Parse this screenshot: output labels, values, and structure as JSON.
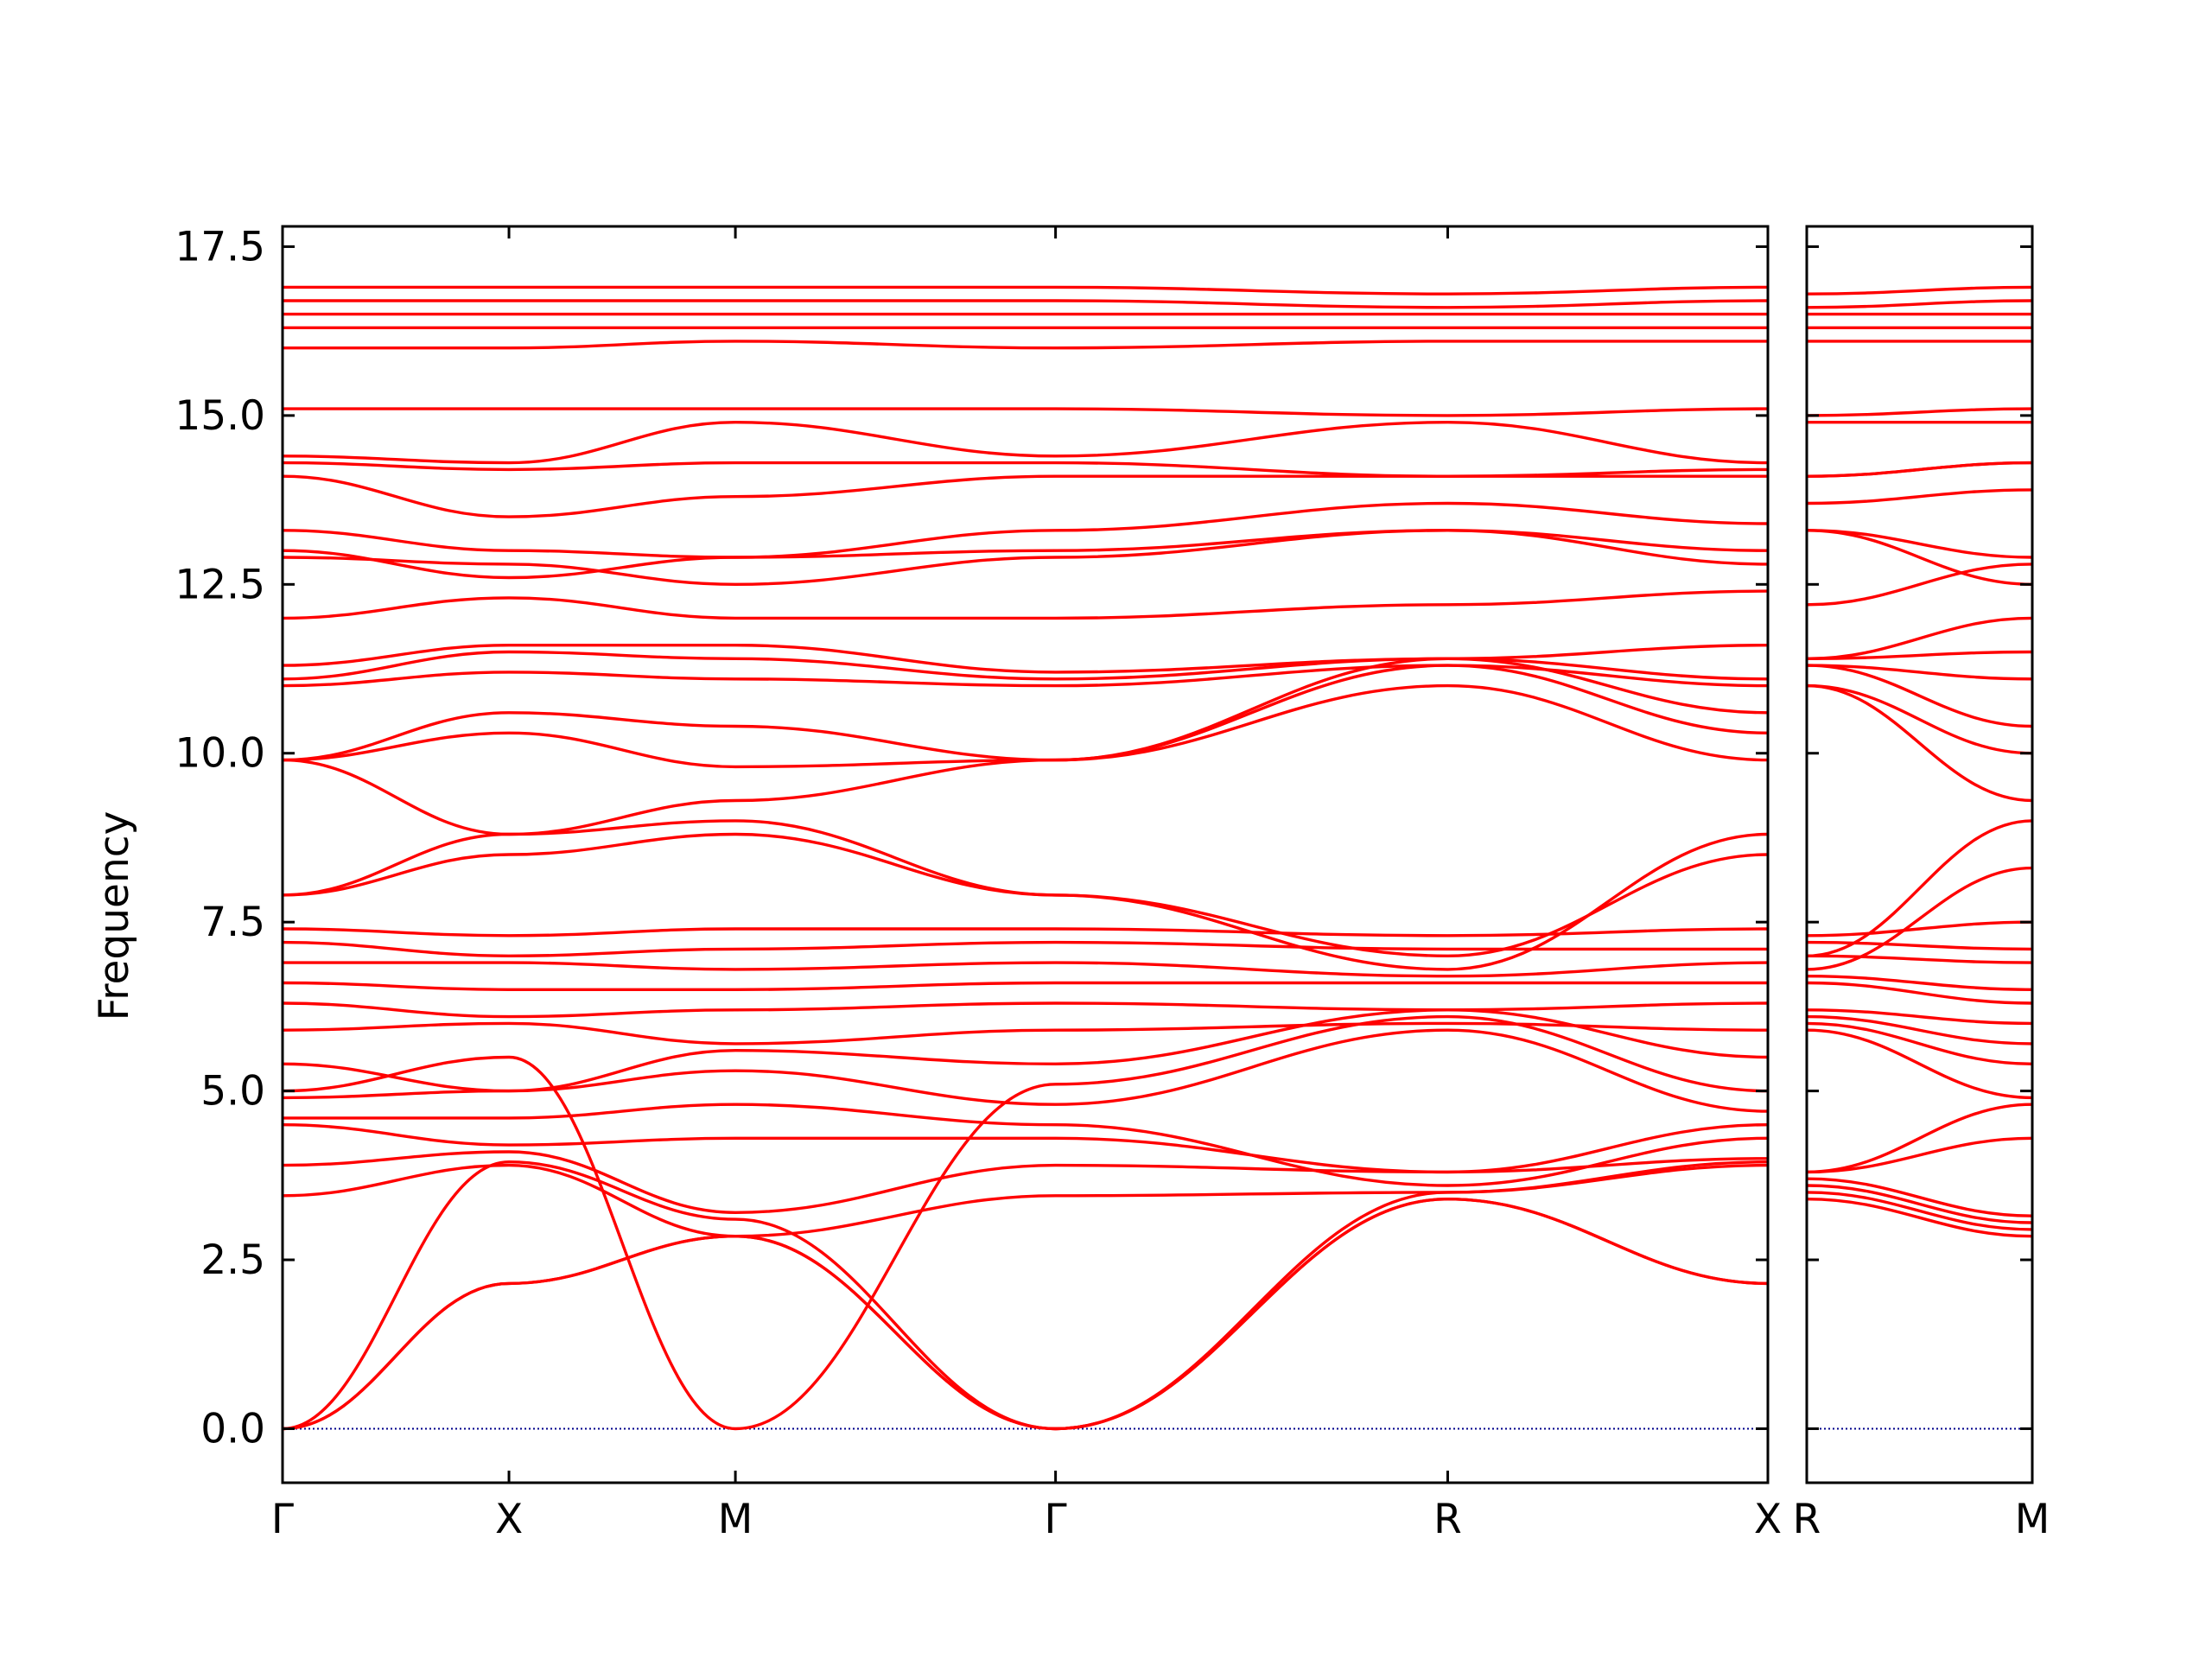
{
  "chart_data": {
    "type": "line",
    "ylabel": "Frequency",
    "ylim": [
      -0.8,
      17.8
    ],
    "yticks": [
      "0.0",
      "2.5",
      "5.0",
      "7.5",
      "10.0",
      "12.5",
      "15.0",
      "17.5"
    ],
    "line_color": "#ff0000",
    "zero_line_color": "#00008b",
    "panels": [
      {
        "name": "main",
        "kpoints": [
          "Γ",
          "X",
          "M",
          "Γ",
          "R",
          "X"
        ],
        "segment_lengths": [
          1,
          1,
          1.414,
          1.732,
          1.414
        ],
        "bands": [
          [
            0.0,
            3.95,
            3.1,
            0.0,
            3.5,
            3.95
          ],
          [
            0.0,
            2.15,
            2.85,
            0.0,
            3.4,
            2.15
          ],
          [
            0.0,
            2.15,
            2.85,
            0.0,
            3.4,
            2.15
          ],
          [
            3.45,
            3.9,
            2.85,
            3.45,
            3.5,
            3.9
          ],
          [
            3.9,
            4.1,
            3.2,
            3.9,
            3.8,
            4.0
          ],
          [
            4.5,
            4.2,
            4.3,
            4.3,
            3.8,
            4.5
          ],
          [
            4.6,
            4.6,
            4.8,
            4.5,
            3.6,
            4.3
          ],
          [
            4.9,
            5.0,
            5.3,
            4.8,
            5.9,
            4.7
          ],
          [
            5.0,
            5.5,
            0.0,
            5.1,
            6.1,
            5.0
          ],
          [
            5.4,
            5.0,
            5.6,
            5.4,
            6.2,
            5.5
          ],
          [
            5.9,
            6.0,
            5.7,
            5.9,
            6.0,
            5.9
          ],
          [
            6.3,
            6.1,
            6.2,
            6.3,
            6.2,
            6.3
          ],
          [
            6.6,
            6.5,
            6.5,
            6.6,
            6.6,
            6.6
          ],
          [
            6.9,
            6.9,
            6.8,
            6.9,
            6.7,
            6.9
          ],
          [
            7.2,
            7.0,
            7.1,
            7.2,
            7.1,
            7.1
          ],
          [
            7.4,
            7.3,
            7.4,
            7.4,
            7.3,
            7.4
          ],
          [
            7.9,
            8.5,
            8.8,
            7.9,
            7.0,
            8.5
          ],
          [
            7.9,
            8.8,
            9.0,
            7.9,
            6.8,
            8.8
          ],
          [
            9.9,
            8.8,
            9.3,
            9.9,
            11.0,
            9.9
          ],
          [
            9.9,
            10.3,
            9.8,
            9.9,
            11.3,
            10.3
          ],
          [
            9.9,
            10.6,
            10.4,
            9.9,
            11.4,
            10.6
          ],
          [
            11.0,
            11.2,
            11.1,
            11.0,
            11.3,
            11.0
          ],
          [
            11.1,
            11.5,
            11.4,
            11.1,
            11.4,
            11.1
          ],
          [
            11.3,
            11.6,
            11.6,
            11.2,
            11.4,
            11.6
          ],
          [
            12.0,
            12.3,
            12.0,
            12.0,
            12.2,
            12.4
          ],
          [
            12.9,
            12.8,
            12.5,
            12.9,
            13.3,
            12.8
          ],
          [
            13.0,
            12.6,
            12.9,
            13.0,
            13.3,
            13.0
          ],
          [
            13.3,
            13.0,
            12.9,
            13.3,
            13.7,
            13.4
          ],
          [
            14.1,
            13.5,
            13.8,
            14.1,
            14.1,
            14.1
          ],
          [
            14.3,
            14.2,
            14.3,
            14.3,
            14.1,
            14.2
          ],
          [
            14.4,
            14.3,
            14.9,
            14.4,
            14.9,
            14.3
          ],
          [
            15.1,
            15.1,
            15.1,
            15.1,
            15.0,
            15.1
          ],
          [
            16.0,
            16.0,
            16.1,
            16.0,
            16.1,
            16.1
          ],
          [
            16.3,
            16.3,
            16.3,
            16.3,
            16.3,
            16.3
          ],
          [
            16.5,
            16.5,
            16.5,
            16.5,
            16.5,
            16.5
          ],
          [
            16.7,
            16.7,
            16.7,
            16.7,
            16.6,
            16.7
          ],
          [
            16.9,
            16.9,
            16.9,
            16.9,
            16.8,
            16.9
          ]
        ]
      },
      {
        "name": "R-M",
        "kpoints": [
          "R",
          "M"
        ],
        "segment_lengths": [
          1
        ],
        "bands": [
          [
            3.4,
            2.85
          ],
          [
            3.5,
            2.95
          ],
          [
            3.6,
            3.05
          ],
          [
            3.7,
            3.15
          ],
          [
            3.8,
            4.3
          ],
          [
            3.8,
            4.8
          ],
          [
            5.9,
            4.9
          ],
          [
            6.0,
            5.4
          ],
          [
            6.1,
            5.7
          ],
          [
            6.2,
            6.0
          ],
          [
            6.6,
            6.3
          ],
          [
            6.7,
            6.5
          ],
          [
            7.0,
            6.9
          ],
          [
            7.2,
            7.1
          ],
          [
            7.3,
            7.5
          ],
          [
            6.8,
            8.3
          ],
          [
            7.0,
            9.0
          ],
          [
            11.0,
            9.3
          ],
          [
            11.0,
            10.0
          ],
          [
            11.3,
            10.4
          ],
          [
            11.3,
            11.1
          ],
          [
            11.4,
            11.5
          ],
          [
            11.4,
            12.0
          ],
          [
            12.2,
            12.8
          ],
          [
            13.3,
            12.9
          ],
          [
            13.3,
            12.5
          ],
          [
            13.7,
            13.9
          ],
          [
            14.1,
            14.3
          ],
          [
            14.1,
            14.3
          ],
          [
            14.9,
            14.9
          ],
          [
            15.0,
            15.1
          ],
          [
            16.1,
            16.1
          ],
          [
            16.3,
            16.3
          ],
          [
            16.5,
            16.5
          ],
          [
            16.6,
            16.7
          ],
          [
            16.8,
            16.9
          ]
        ]
      }
    ]
  }
}
